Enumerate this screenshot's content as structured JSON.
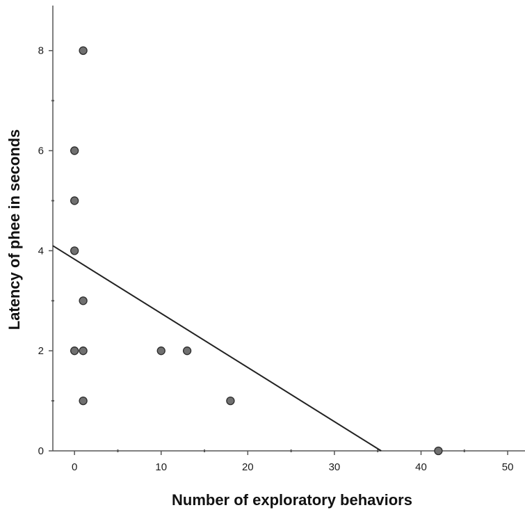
{
  "chart_data": {
    "type": "scatter",
    "title": "",
    "xlabel": "Number of exploratory behaviors",
    "ylabel": "Latency of phee in seconds",
    "xlim": [
      -2.5,
      52
    ],
    "ylim": [
      0,
      8.9
    ],
    "xticks": [
      0,
      10,
      20,
      30,
      40,
      50
    ],
    "xminor": [
      5,
      15,
      25,
      35,
      45
    ],
    "yticks": [
      0,
      2,
      4,
      6,
      8
    ],
    "yminor": [
      1,
      3,
      5,
      7
    ],
    "grid": false,
    "points": [
      {
        "x": 1,
        "y": 8
      },
      {
        "x": 0,
        "y": 6
      },
      {
        "x": 0,
        "y": 5
      },
      {
        "x": 0,
        "y": 4
      },
      {
        "x": 1,
        "y": 3
      },
      {
        "x": 0,
        "y": 2
      },
      {
        "x": 1,
        "y": 2
      },
      {
        "x": 10,
        "y": 2
      },
      {
        "x": 13,
        "y": 2
      },
      {
        "x": 1,
        "y": 1
      },
      {
        "x": 18,
        "y": 1
      },
      {
        "x": 42,
        "y": 0
      }
    ],
    "fit_line": {
      "x0": -2.5,
      "y0": 4.1,
      "x1": 35.4,
      "y1": 0
    },
    "colors": {
      "marker_fill": "#707070",
      "marker_stroke": "#2b2b2b",
      "line": "#222222",
      "axis": "#555555",
      "text": "#1a1a1a"
    }
  }
}
